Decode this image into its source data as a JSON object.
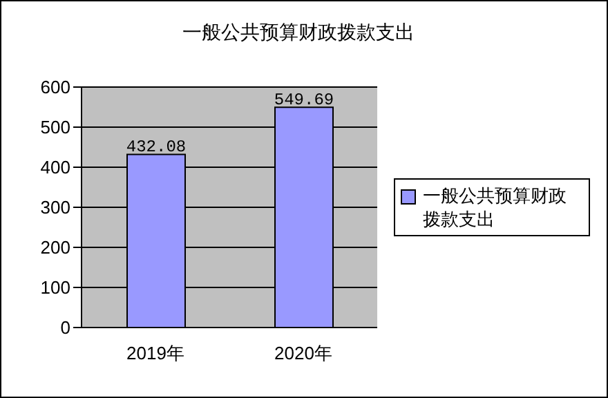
{
  "chart_data": {
    "type": "bar",
    "title": "一般公共预算财政拨款支出",
    "categories": [
      "2019年",
      "2020年"
    ],
    "series": [
      {
        "name": "一般公共预算财政拨款支出",
        "color": "#9999ff",
        "values": [
          432.08,
          549.69
        ]
      }
    ],
    "ylim": [
      0,
      600
    ],
    "yticks": [
      0,
      100,
      200,
      300,
      400,
      500,
      600
    ],
    "grid": "y",
    "legend": "right",
    "data_labels": true
  }
}
